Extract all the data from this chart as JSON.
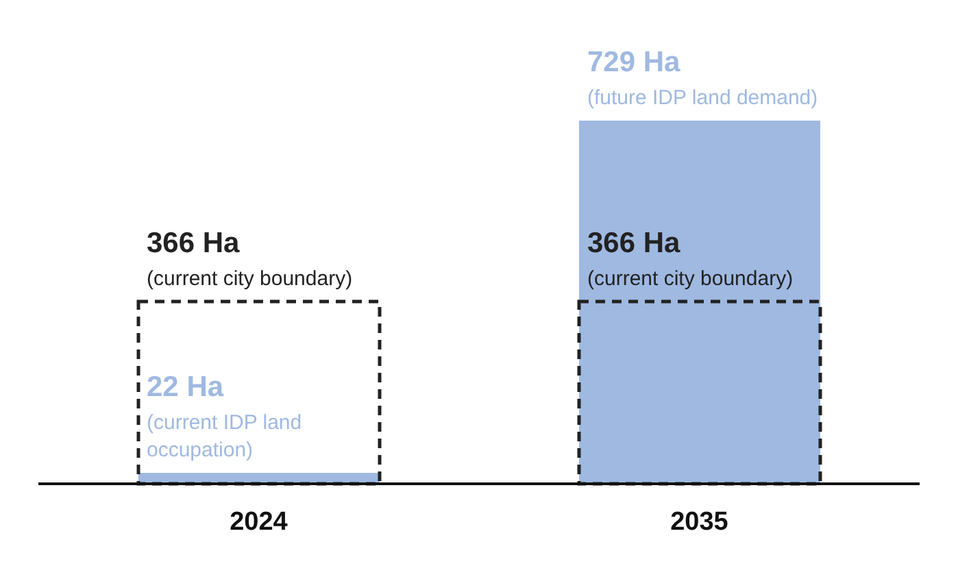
{
  "chart_data": {
    "type": "bar",
    "categories": [
      "2024",
      "2035"
    ],
    "series": [
      {
        "color": "#9fb9e1",
        "values": [
          22,
          729
        ],
        "value_labels": [
          "22 Ha",
          "729 Ha"
        ]
      },
      {
        "color": "#222222",
        "line_style": "dashed",
        "values": [
          366,
          366
        ],
        "value_labels": [
          "366 Ha",
          "366 Ha"
        ]
      }
    ],
    "annotations": [
      {
        "text": "(current IDP land occupation)",
        "x": "2024",
        "y": 22
      },
      {
        "text": "(future IDP land demand)",
        "x": "2035",
        "y": 729
      },
      {
        "text": "(current city boundary)",
        "x": "2024",
        "y": 366
      },
      {
        "text": "(current city boundary)",
        "x": "2035",
        "y": 366
      }
    ]
  }
}
